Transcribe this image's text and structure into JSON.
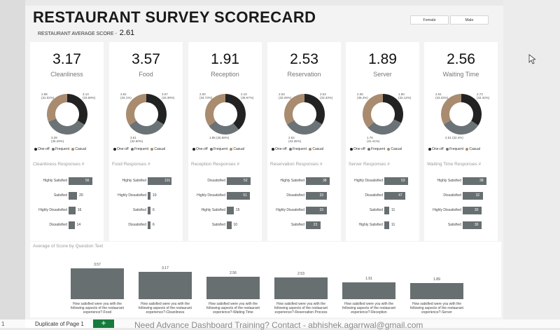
{
  "title": "RESTAURANT SURVEY SCORECARD",
  "average": {
    "label": "RESTAURANT AVERAGE SCORE -",
    "value": "2.61"
  },
  "slicers": [
    "Female",
    "Male"
  ],
  "legend": [
    "One-off",
    "Frequent",
    "Casual"
  ],
  "colors": {
    "one_off": "#222222",
    "frequent": "#6b7377",
    "casual": "#a98b6f",
    "bar": "#676f71"
  },
  "cards": [
    {
      "kpi": "3.17",
      "label": "Cleanliness",
      "donut": [
        0.3369,
        0.3529,
        0.3102
      ],
      "labels": {
        "top_left": "2.88\n(31.02%)",
        "top_right": "3.13\n(33.69%)",
        "bottom": "3.28\n(35.29%)"
      }
    },
    {
      "kpi": "3.57",
      "label": "Food",
      "donut": [
        0.3339,
        0.325,
        0.3411
      ],
      "labels": {
        "top_left": "3.81\n(34.1%)",
        "top_right": "3.57\n(33.39%)",
        "bottom": "3.51\n(32.50%)"
      }
    },
    {
      "kpi": "1.91",
      "label": "Reception",
      "donut": [
        0.3867,
        0.2658,
        0.3473
      ],
      "labels": {
        "top_left": "2.00\n(34.73%)",
        "top_right": "2.10\n(38.67%)",
        "bottom": "1.86 (26.58%)"
      }
    },
    {
      "kpi": "2.53",
      "label": "Reservation",
      "donut": [
        0.3333,
        0.3336,
        0.3329
      ],
      "labels": {
        "top_left": "2.53\n(33.29%)",
        "top_right": "2.53\n(33.33%)",
        "bottom": "2.54\n(33.36%)"
      }
    },
    {
      "kpi": "1.89",
      "label": "Server",
      "donut": [
        0.3214,
        0.3141,
        0.3645
      ],
      "labels": {
        "top_left": "2.06\n(36.4%)",
        "top_right": "1.80\n(32.14%)",
        "bottom": "1.76\n(31.41%)"
      }
    },
    {
      "kpi": "2.56",
      "label": "Waiting Time",
      "donut": [
        0.3432,
        0.3241,
        0.3333
      ],
      "labels": {
        "top_left": "2.51\n(33.33%)",
        "top_right": "2.73\n(34.32%)",
        "bottom": "2.51 (32.4%)"
      }
    }
  ],
  "responses": [
    {
      "title": "Cleanliness Responses #",
      "rows": [
        {
          "label": "Highly Satisfied",
          "value": 56
        },
        {
          "label": "Satisfied",
          "value": 20
        },
        {
          "label": "Highly Dissatisfied",
          "value": 16
        },
        {
          "label": "Dissatisfied",
          "value": 14
        }
      ]
    },
    {
      "title": "Food Responses #",
      "rows": [
        {
          "label": "Highly Satisfied",
          "value": 101
        },
        {
          "label": "Highly Dissatisfied",
          "value": 10
        },
        {
          "label": "Satisfied",
          "value": 6
        },
        {
          "label": "Dissatisfied",
          "value": 6
        }
      ]
    },
    {
      "title": "Reception Responses #",
      "rows": [
        {
          "label": "Dissatisfied",
          "value": 52
        },
        {
          "label": "Highly Dissatisfied",
          "value": 51
        },
        {
          "label": "Highly Satisfied",
          "value": 15
        },
        {
          "label": "Satisfied",
          "value": 10
        }
      ]
    },
    {
      "title": "Reservation Responses #",
      "rows": [
        {
          "label": "Highly Satisfied",
          "value": 38
        },
        {
          "label": "Dissatisfied",
          "value": 33
        },
        {
          "label": "Highly Dissatisfied",
          "value": 33
        },
        {
          "label": "Satisfied",
          "value": 23
        }
      ]
    },
    {
      "title": "Server Responses #",
      "rows": [
        {
          "label": "Highly Dissatisfied",
          "value": 53
        },
        {
          "label": "Dissatisfied",
          "value": 47
        },
        {
          "label": "Satisfied",
          "value": 11
        },
        {
          "label": "Highly Satisfied",
          "value": 11
        }
      ]
    },
    {
      "title": "Waiting Time Responses #",
      "rows": [
        {
          "label": "Highly Satisfied",
          "value": 38
        },
        {
          "label": "Dissatisfied",
          "value": 32
        },
        {
          "label": "Highly Dissatisfied",
          "value": 30
        },
        {
          "label": "Satisfied",
          "value": 30
        }
      ]
    }
  ],
  "bottom_chart": {
    "title": "Average of Score by Question Text",
    "bars": [
      {
        "value": 3.57,
        "label": "How satisfied were you with the following aspects of the restaurant experience?-Food"
      },
      {
        "value": 3.17,
        "label": "How satisfied were you with the following aspects of the restaurant experience?-Cleanliness"
      },
      {
        "value": 2.56,
        "label": "How satisfied were you with the following aspects of the restaurant experience?-Waiting Time"
      },
      {
        "value": 2.53,
        "label": "How satisfied were you with the following aspects of the restaurant experience?-Reservation Process"
      },
      {
        "value": 1.91,
        "label": "How satisfied were you with the following aspects of the restaurant experience?-Reception"
      },
      {
        "value": 1.89,
        "label": "How satisfied were you with the following aspects of the restaurant experience?-Server"
      }
    ]
  },
  "tabs": {
    "page_tab": "Duplicate of Page 1",
    "add_tab": "+"
  },
  "banner": "Need Advance Dashboard Training? Contact - abhishek.agarrwal@gmail.com",
  "page_number": "1"
}
